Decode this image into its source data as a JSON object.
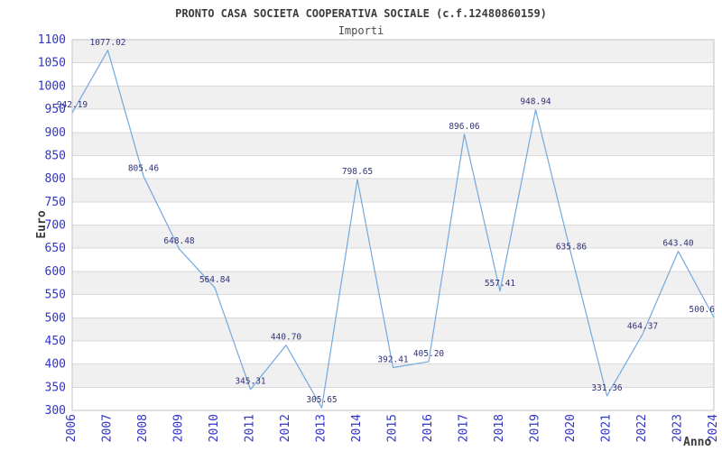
{
  "header": {
    "title": "PRONTO CASA SOCIETA COOPERATIVA SOCIALE (c.f.12480860159)",
    "subtitle": "Importi"
  },
  "chart_data": {
    "type": "line",
    "title": "PRONTO CASA SOCIETA COOPERATIVA SOCIALE (c.f.12480860159)",
    "subtitle": "Importi",
    "xlabel": "Anno",
    "ylabel": "Euro",
    "x": [
      2006,
      2007,
      2008,
      2009,
      2010,
      2011,
      2012,
      2013,
      2014,
      2015,
      2016,
      2017,
      2018,
      2019,
      2020,
      2021,
      2022,
      2023,
      2024
    ],
    "values": [
      942.19,
      1077.02,
      805.46,
      648.48,
      564.84,
      345.31,
      440.7,
      305.65,
      798.65,
      392.41,
      405.2,
      896.06,
      557.41,
      948.94,
      635.86,
      331.36,
      464.37,
      643.4,
      500.6
    ],
    "point_labels": [
      "942.19",
      "1077.02",
      "805.46",
      "648.48",
      "564.84",
      "345.31",
      "440.70",
      "305.65",
      "798.65",
      "392.41",
      "405.20",
      "896.06",
      "557.41",
      "948.94",
      "635.86",
      "331.36",
      "464.37",
      "643.40",
      "500.6"
    ],
    "ylim": [
      300,
      1100
    ],
    "ytick_step": 50,
    "yticks": [
      300,
      350,
      400,
      450,
      500,
      550,
      600,
      650,
      700,
      750,
      800,
      850,
      900,
      950,
      1000,
      1050,
      1100
    ],
    "grid": "horizontal alternating bands, topmost band shaded",
    "legend_position": "none",
    "colors": {
      "line": "#74a9dd",
      "tick_label": "#3033c8",
      "value_label": "#32327a",
      "band": "#f0f0f0",
      "gridline": "#d9d9d9",
      "plot_border": "#c3c3c3",
      "text": "#3c3c3c"
    }
  }
}
